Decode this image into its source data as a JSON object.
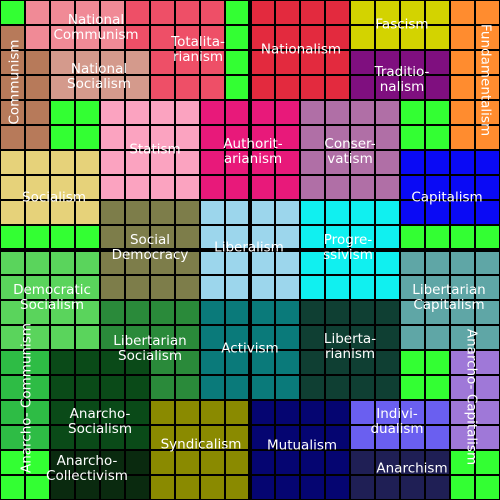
{
  "regions": [
    {
      "id": "communism",
      "label": "Communism",
      "color": "#b77a5a"
    },
    {
      "id": "national-communism",
      "label": "National\nCommunism",
      "color": "#f08a96"
    },
    {
      "id": "totalitarianism",
      "label": "Totalita-\nrianism",
      "color": "#ee4f67"
    },
    {
      "id": "nationalism",
      "label": "Nationalism",
      "color": "#e32a3e"
    },
    {
      "id": "fascism",
      "label": "Fascism",
      "color": "#d3d300"
    },
    {
      "id": "fundamentalism",
      "label": "Fundamentalism",
      "color": "#ff8c2f"
    },
    {
      "id": "national-socialism",
      "label": "National\nSocialism",
      "color": "#d49a8c"
    },
    {
      "id": "traditionalism",
      "label": "Traditio-\nnalism",
      "color": "#7f0f7f"
    },
    {
      "id": "statism",
      "label": "Statism",
      "color": "#fba3c0"
    },
    {
      "id": "authoritarianism",
      "label": "Authorit-\narianism",
      "color": "#e8197a"
    },
    {
      "id": "conservatism",
      "label": "Conser-\nvatism",
      "color": "#b06fa6"
    },
    {
      "id": "socialism",
      "label": "Socialism",
      "color": "#e6d27a"
    },
    {
      "id": "capitalism",
      "label": "Capitalism",
      "color": "#0a0af5"
    },
    {
      "id": "social-democracy",
      "label": "Social\nDemocracy",
      "color": "#7d7d4a"
    },
    {
      "id": "liberalism",
      "label": "Liberalism",
      "color": "#9cd6ec"
    },
    {
      "id": "progressivism",
      "label": "Progre-\nssivism",
      "color": "#10f0f0"
    },
    {
      "id": "democratic-socialism",
      "label": "Democratic\nSocialism",
      "color": "#5ad45c"
    },
    {
      "id": "libertarian-capitalism",
      "label": "Libertarian\nCapitalism",
      "color": "#5fa6a6"
    },
    {
      "id": "libertarian-socialism",
      "label": "Libertarian\nSocialism",
      "color": "#2a8a3a"
    },
    {
      "id": "activism",
      "label": "Activism",
      "color": "#0a7a7a"
    },
    {
      "id": "libertarianism",
      "label": "Liberta-\nrianism",
      "color": "#0f3f33"
    },
    {
      "id": "anarcho-communism",
      "label": "Anarcho-\nCommunism",
      "color": "#2ebc45"
    },
    {
      "id": "anarcho-socialism",
      "label": "Anarcho-\nSocialism",
      "color": "#0a4a18"
    },
    {
      "id": "syndicalism",
      "label": "Syndicalism",
      "color": "#8a8a00"
    },
    {
      "id": "mutualism",
      "label": "Mutualism",
      "color": "#050571"
    },
    {
      "id": "individualism",
      "label": "Indivi-\ndualism",
      "color": "#6a5ff0"
    },
    {
      "id": "anarcho-capitalism",
      "label": "Anarcho-\nCapitalism",
      "color": "#9f78d8"
    },
    {
      "id": "anarcho-collectivism",
      "label": "Anarcho-\nCollectivism",
      "color": "#0a2a0f"
    },
    {
      "id": "anarchism",
      "label": "Anarchism",
      "color": "#1f1f55"
    },
    {
      "id": "bright-green",
      "label": "",
      "color": "#33ff33"
    }
  ]
}
